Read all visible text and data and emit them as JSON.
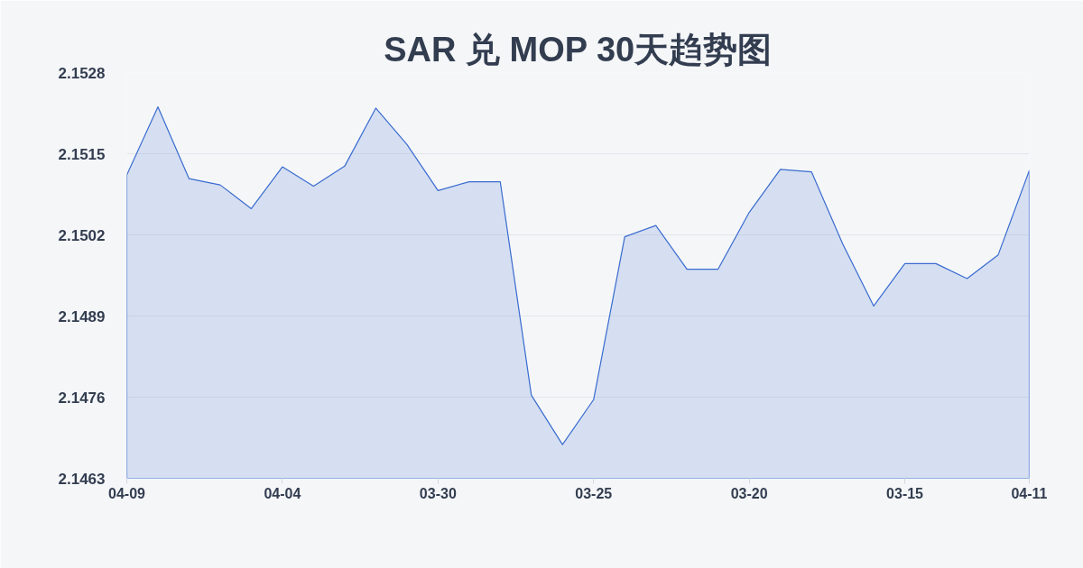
{
  "chart_data": {
    "type": "area",
    "title": "SAR 兑 MOP 30天趋势图",
    "categories": [
      "04-09",
      null,
      null,
      null,
      null,
      "04-04",
      null,
      null,
      null,
      null,
      "03-30",
      null,
      null,
      null,
      null,
      "03-25",
      null,
      null,
      null,
      null,
      "03-20",
      null,
      null,
      null,
      null,
      "03-15",
      null,
      null,
      null,
      "04-11"
    ],
    "series": [
      {
        "color": "#3a6bd0",
        "values": [
          2.15116,
          2.15225,
          2.1511,
          2.151,
          2.15062,
          2.15129,
          2.15098,
          2.1513,
          2.15223,
          2.15165,
          2.15091,
          2.15105,
          2.15105,
          2.14763,
          2.14684,
          2.14756,
          2.15017,
          2.15035,
          2.14965,
          2.14965,
          2.15056,
          2.15125,
          2.15121,
          2.15006,
          2.14906,
          2.14974,
          2.14974,
          2.1495,
          2.14988,
          2.15123
        ]
      }
    ],
    "ylim": [
      2.1463,
      2.1528
    ],
    "yticks": [
      2.1463,
      2.1476,
      2.1489,
      2.1502,
      2.1515,
      2.1528
    ],
    "grid": "y"
  }
}
